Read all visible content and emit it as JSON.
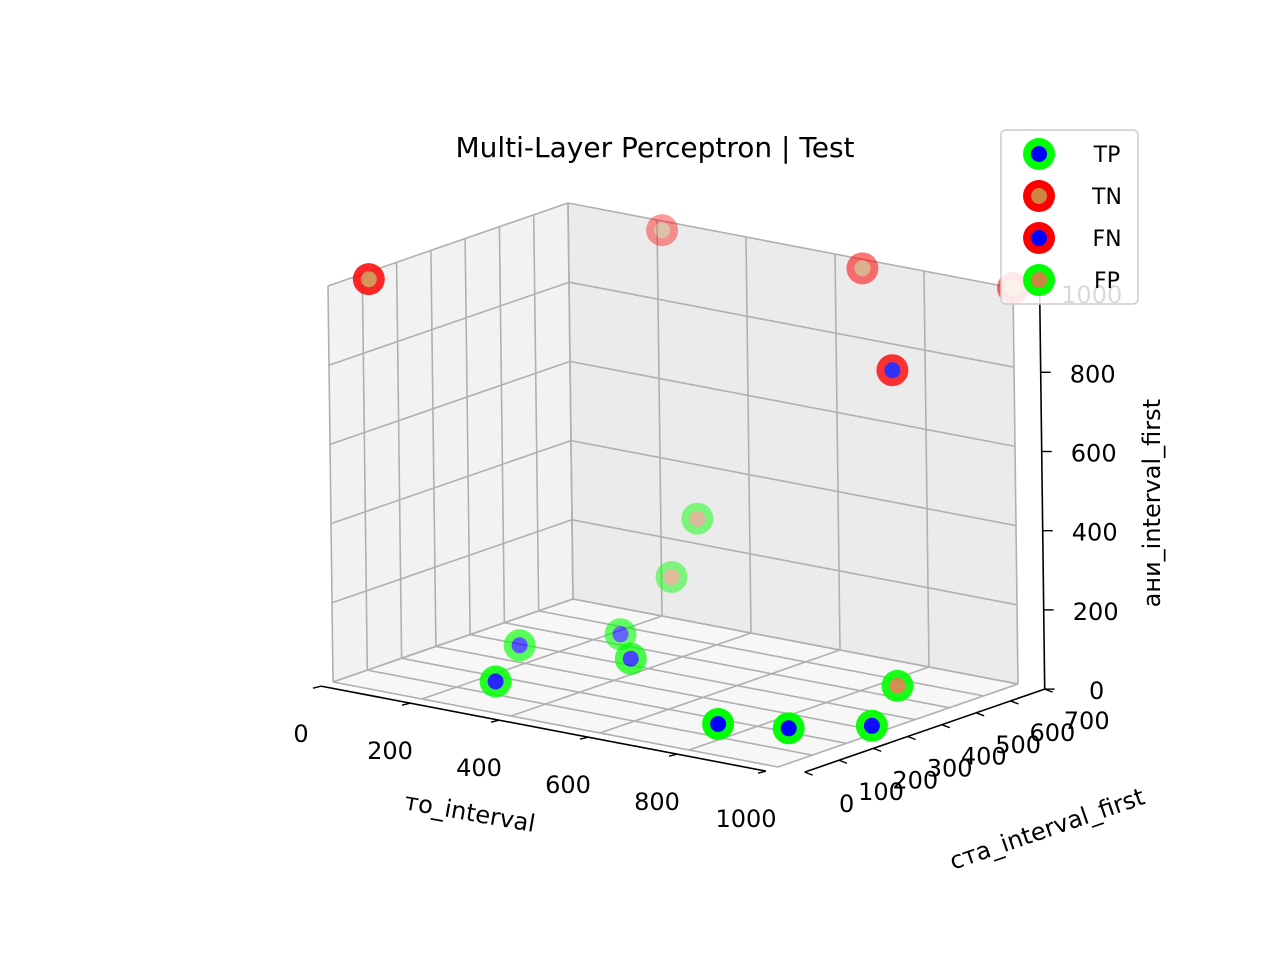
{
  "chart_data": {
    "type": "scatter3d",
    "title": "Multi-Layer Perceptron | Test",
    "xlabel": "то_interval",
    "ylabel": "ста_interval_first",
    "zlabel": "ани_interval_first",
    "xlim": [
      0,
      1000
    ],
    "ylim": [
      0,
      700
    ],
    "zlim": [
      0,
      1000
    ],
    "x_ticks": [
      "0",
      "200",
      "400",
      "600",
      "800",
      "1000"
    ],
    "y_ticks": [
      "0",
      "100",
      "200",
      "300",
      "400",
      "500",
      "600",
      "700"
    ],
    "z_ticks": [
      "0",
      "200",
      "400",
      "600",
      "800",
      "1000"
    ],
    "grid": true,
    "legend_position": "top-right",
    "colors": {
      "green": "#00ff00",
      "red": "#ff0000",
      "blue": "#0000ff",
      "orange": "#cd853f",
      "pane_left": "#f2f2f2",
      "pane_back": "#ebebeb",
      "pane_floor": "#f7f7f7",
      "grid": "#b0b0b0"
    },
    "series": [
      {
        "name": "TP",
        "edge": "green",
        "face": "blue",
        "points": [
          {
            "x": 400,
            "y": 350,
            "z": 40
          },
          {
            "x": 300,
            "y": 450,
            "z": 50
          },
          {
            "x": 150,
            "y": 350,
            "z": 20
          },
          {
            "x": 250,
            "y": 150,
            "z": 10
          },
          {
            "x": 750,
            "y": 150,
            "z": 10
          },
          {
            "x": 870,
            "y": 200,
            "z": 10
          },
          {
            "x": 980,
            "y": 300,
            "z": 10
          }
        ]
      },
      {
        "name": "TN",
        "edge": "red",
        "face": "orange",
        "points": [
          {
            "x": 250,
            "y": 650,
            "z": 1000
          },
          {
            "x": 700,
            "y": 650,
            "z": 1000
          },
          {
            "x": 1000,
            "y": 700,
            "z": 1000
          },
          {
            "x": 30,
            "y": 80,
            "z": 1000
          }
        ]
      },
      {
        "name": "FN",
        "edge": "red",
        "face": "blue",
        "points": [
          {
            "x": 920,
            "y": 450,
            "z": 850
          }
        ]
      },
      {
        "name": "FP",
        "edge": "green",
        "face": "orange",
        "points": [
          {
            "x": 360,
            "y": 600,
            "z": 310
          },
          {
            "x": 300,
            "y": 600,
            "z": 150
          },
          {
            "x": 1000,
            "y": 350,
            "z": 100
          }
        ]
      }
    ]
  }
}
